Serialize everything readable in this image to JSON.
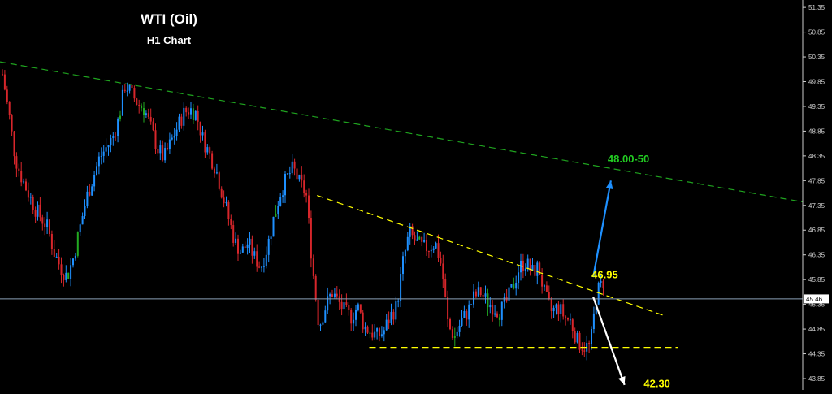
{
  "chart_data": {
    "type": "candlestick",
    "title": "WTI (Oil)",
    "subtitle": "H1 Chart",
    "ylim": [
      43.62,
      51.5
    ],
    "y_ticks": [
      "51.35",
      "50.85",
      "50.35",
      "49.85",
      "49.35",
      "48.85",
      "48.35",
      "47.85",
      "47.35",
      "46.85",
      "46.35",
      "45.85",
      "45.35",
      "44.85",
      "44.35",
      "43.85"
    ],
    "current_price": "45.46",
    "trendlines": [
      {
        "color": "#1fa31f",
        "style": "dashed",
        "from": [
          0,
          50.25
        ],
        "to": [
          1,
          47.42
        ]
      },
      {
        "color": "#ffff00",
        "style": "dashed",
        "from": [
          0.395,
          47.55
        ],
        "to": [
          0.826,
          45.13
        ]
      },
      {
        "color": "#ffff00",
        "style": "dashed",
        "from": [
          0.46,
          44.48
        ],
        "to": [
          0.845,
          44.48
        ]
      }
    ],
    "annotations": [
      {
        "text": "48.00-50",
        "color": "#22cc22",
        "x": 0.757,
        "y": 48.22
      },
      {
        "text": "46.95",
        "color": "#ffff00",
        "x": 0.737,
        "y": 45.88
      },
      {
        "text": "42.30",
        "color": "#ffff00",
        "x": 0.802,
        "y": 43.68
      }
    ],
    "arrows": [
      {
        "color": "#1e90ff",
        "from": [
          0.739,
          45.9
        ],
        "to": [
          0.761,
          47.85
        ]
      },
      {
        "color": "#ffffff",
        "from": [
          0.739,
          45.5
        ],
        "to": [
          0.778,
          43.72
        ]
      }
    ],
    "ohlc_colors": {
      "up": "#1e90ff",
      "down": "#d8262b",
      "other": "#22aa22"
    },
    "price_path": [
      50.0,
      49.2,
      48.3,
      47.9,
      47.6,
      47.3,
      47.1,
      46.9,
      46.4,
      46.1,
      45.9,
      46.3,
      46.9,
      47.5,
      47.9,
      48.3,
      48.5,
      48.7,
      49.1,
      49.8,
      49.6,
      49.4,
      49.3,
      48.9,
      48.5,
      48.3,
      48.6,
      48.9,
      49.2,
      49.3,
      49.2,
      48.7,
      48.4,
      48.1,
      47.6,
      47.1,
      46.6,
      46.4,
      46.6,
      46.3,
      46.1,
      46.5,
      47.1,
      47.6,
      47.9,
      48.1,
      47.8,
      47.6,
      46.1,
      44.9,
      45.3,
      45.6,
      45.4,
      45.2,
      45.1,
      45.3,
      44.9,
      44.8,
      44.7,
      44.8,
      45.1,
      45.3,
      46.2,
      46.8,
      46.6,
      46.5,
      46.5,
      46.6,
      46.1,
      44.9,
      44.7,
      45.0,
      45.2,
      45.5,
      45.6,
      45.4,
      45.3,
      45.2,
      45.4,
      45.7,
      46.1,
      46.2,
      46.0,
      46.1,
      45.5,
      45.2,
      45.3,
      45.1,
      45.0,
      44.6,
      44.5,
      44.5,
      45.6,
      45.8
    ]
  }
}
